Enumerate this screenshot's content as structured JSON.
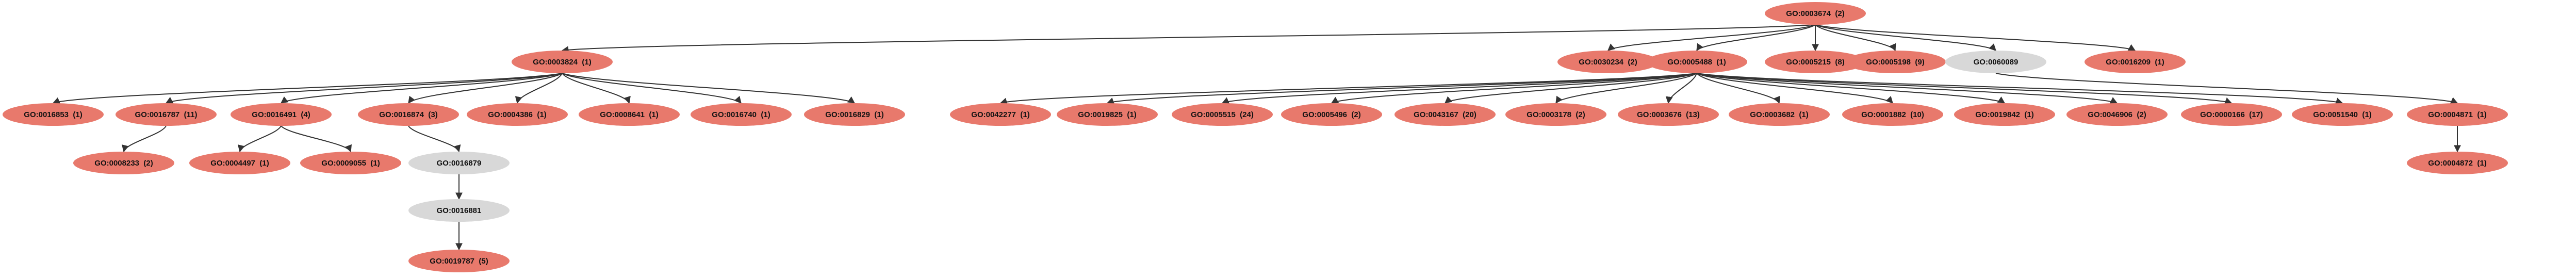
{
  "colors": {
    "term_fill": "#e8796c",
    "intermediate_fill": "#d8d8d8",
    "edge": "#333333",
    "label": "#111111"
  },
  "nodes": [
    {
      "id": "n_3674",
      "label": "GO:0003674  (2)",
      "kind": "term"
    },
    {
      "id": "n_3824",
      "label": "GO:0003824  (1)",
      "kind": "term"
    },
    {
      "id": "n_30234",
      "label": "GO:0030234  (2)",
      "kind": "term"
    },
    {
      "id": "n_5488",
      "label": "GO:0005488  (1)",
      "kind": "term"
    },
    {
      "id": "n_5215",
      "label": "GO:0005215  (8)",
      "kind": "term"
    },
    {
      "id": "n_5198",
      "label": "GO:0005198  (9)",
      "kind": "term"
    },
    {
      "id": "n_60089",
      "label": "GO:0060089",
      "kind": "intermediate"
    },
    {
      "id": "n_16209",
      "label": "GO:0016209  (1)",
      "kind": "term"
    },
    {
      "id": "n_16853",
      "label": "GO:0016853  (1)",
      "kind": "term"
    },
    {
      "id": "n_16787",
      "label": "GO:0016787  (11)",
      "kind": "term"
    },
    {
      "id": "n_16491",
      "label": "GO:0016491  (4)",
      "kind": "term"
    },
    {
      "id": "n_16874",
      "label": "GO:0016874  (3)",
      "kind": "term"
    },
    {
      "id": "n_4386",
      "label": "GO:0004386  (1)",
      "kind": "term"
    },
    {
      "id": "n_8641",
      "label": "GO:0008641  (1)",
      "kind": "term"
    },
    {
      "id": "n_16740",
      "label": "GO:0016740  (1)",
      "kind": "term"
    },
    {
      "id": "n_16829",
      "label": "GO:0016829  (1)",
      "kind": "term"
    },
    {
      "id": "n_42277",
      "label": "GO:0042277  (1)",
      "kind": "term"
    },
    {
      "id": "n_19825",
      "label": "GO:0019825  (1)",
      "kind": "term"
    },
    {
      "id": "n_5515",
      "label": "GO:0005515  (24)",
      "kind": "term"
    },
    {
      "id": "n_5496",
      "label": "GO:0005496  (2)",
      "kind": "term"
    },
    {
      "id": "n_43167",
      "label": "GO:0043167  (20)",
      "kind": "term"
    },
    {
      "id": "n_3178",
      "label": "GO:0003178  (2)",
      "kind": "term"
    },
    {
      "id": "n_3676",
      "label": "GO:0003676  (13)",
      "kind": "term"
    },
    {
      "id": "n_3682",
      "label": "GO:0003682  (1)",
      "kind": "term"
    },
    {
      "id": "n_1882",
      "label": "GO:0001882  (10)",
      "kind": "term"
    },
    {
      "id": "n_19842",
      "label": "GO:0019842  (1)",
      "kind": "term"
    },
    {
      "id": "n_46906",
      "label": "GO:0046906  (2)",
      "kind": "term"
    },
    {
      "id": "n_166",
      "label": "GO:0000166  (17)",
      "kind": "term"
    },
    {
      "id": "n_51540",
      "label": "GO:0051540  (1)",
      "kind": "term"
    },
    {
      "id": "n_4871",
      "label": "GO:0004871  (1)",
      "kind": "term"
    },
    {
      "id": "n_8233",
      "label": "GO:0008233  (2)",
      "kind": "term"
    },
    {
      "id": "n_4497",
      "label": "GO:0004497  (1)",
      "kind": "term"
    },
    {
      "id": "n_9055",
      "label": "GO:0009055  (1)",
      "kind": "term"
    },
    {
      "id": "n_16879",
      "label": "GO:0016879",
      "kind": "intermediate"
    },
    {
      "id": "n_16881",
      "label": "GO:0016881",
      "kind": "intermediate"
    },
    {
      "id": "n_19787",
      "label": "GO:0019787  (5)",
      "kind": "term"
    },
    {
      "id": "n_4872",
      "label": "GO:0004872  (1)",
      "kind": "term"
    }
  ],
  "edges": [
    [
      "n_3674",
      "n_3824"
    ],
    [
      "n_3674",
      "n_30234"
    ],
    [
      "n_3674",
      "n_5488"
    ],
    [
      "n_3674",
      "n_5215"
    ],
    [
      "n_3674",
      "n_5198"
    ],
    [
      "n_3674",
      "n_60089"
    ],
    [
      "n_3674",
      "n_16209"
    ],
    [
      "n_3824",
      "n_16853"
    ],
    [
      "n_3824",
      "n_16787"
    ],
    [
      "n_3824",
      "n_16491"
    ],
    [
      "n_3824",
      "n_16874"
    ],
    [
      "n_3824",
      "n_4386"
    ],
    [
      "n_3824",
      "n_8641"
    ],
    [
      "n_3824",
      "n_16740"
    ],
    [
      "n_3824",
      "n_16829"
    ],
    [
      "n_5488",
      "n_42277"
    ],
    [
      "n_5488",
      "n_19825"
    ],
    [
      "n_5488",
      "n_5515"
    ],
    [
      "n_5488",
      "n_5496"
    ],
    [
      "n_5488",
      "n_43167"
    ],
    [
      "n_5488",
      "n_3178"
    ],
    [
      "n_5488",
      "n_3676"
    ],
    [
      "n_5488",
      "n_3682"
    ],
    [
      "n_5488",
      "n_1882"
    ],
    [
      "n_5488",
      "n_19842"
    ],
    [
      "n_5488",
      "n_46906"
    ],
    [
      "n_5488",
      "n_166"
    ],
    [
      "n_5488",
      "n_51540"
    ],
    [
      "n_60089",
      "n_4871"
    ],
    [
      "n_16787",
      "n_8233"
    ],
    [
      "n_16491",
      "n_4497"
    ],
    [
      "n_16491",
      "n_9055"
    ],
    [
      "n_16874",
      "n_16879"
    ],
    [
      "n_16879",
      "n_16881"
    ],
    [
      "n_16881",
      "n_19787"
    ],
    [
      "n_4871",
      "n_4872"
    ]
  ]
}
